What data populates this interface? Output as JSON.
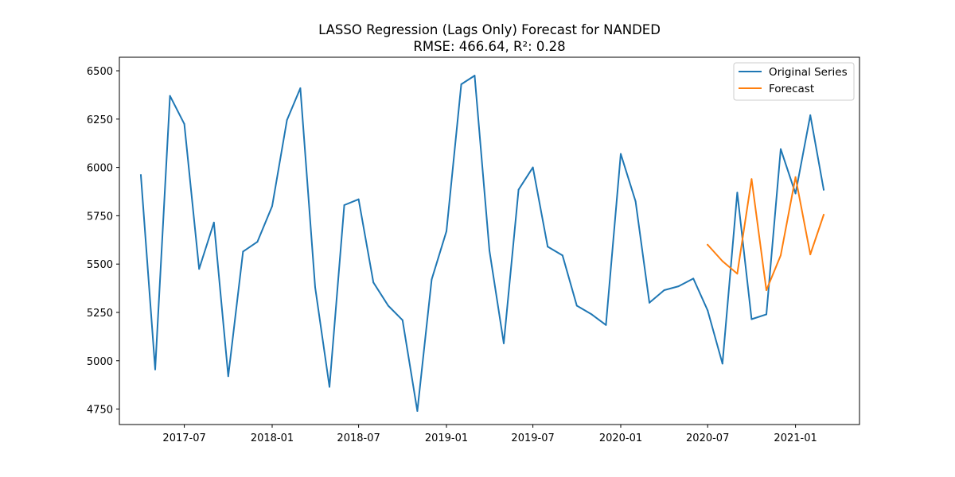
{
  "chart_data": {
    "type": "line",
    "title": "LASSO Regression (Lags Only) Forecast for NANDED",
    "subtitle": "RMSE: 466.64, R²: 0.28",
    "xlabel": "",
    "ylabel": "",
    "x_range": [
      "2017-02-15",
      "2021-05-15"
    ],
    "ylim": [
      4670,
      6570
    ],
    "x_ticks": [
      "2017-07-01",
      "2018-01-01",
      "2018-07-01",
      "2019-01-01",
      "2019-07-01",
      "2020-01-01",
      "2020-07-01",
      "2021-01-01"
    ],
    "x_tick_labels": [
      "2017-07",
      "2018-01",
      "2018-07",
      "2019-01",
      "2019-07",
      "2020-01",
      "2020-07",
      "2021-01"
    ],
    "y_ticks": [
      4750,
      5000,
      5250,
      5500,
      5750,
      6000,
      6250,
      6500
    ],
    "y_tick_labels": [
      "4750",
      "5000",
      "5250",
      "5500",
      "5750",
      "6000",
      "6250",
      "6500"
    ],
    "grid": false,
    "legend_position": "top-right",
    "series": [
      {
        "name": "Original Series",
        "color": "#1f77b4",
        "x": [
          "2017-04-01",
          "2017-05-01",
          "2017-06-01",
          "2017-07-01",
          "2017-08-01",
          "2017-09-01",
          "2017-10-01",
          "2017-11-01",
          "2017-12-01",
          "2018-01-01",
          "2018-02-01",
          "2018-03-01",
          "2018-04-01",
          "2018-05-01",
          "2018-06-01",
          "2018-07-01",
          "2018-08-01",
          "2018-09-01",
          "2018-10-01",
          "2018-11-01",
          "2018-12-01",
          "2019-01-01",
          "2019-02-01",
          "2019-03-01",
          "2019-04-01",
          "2019-05-01",
          "2019-06-01",
          "2019-07-01",
          "2019-08-01",
          "2019-09-01",
          "2019-10-01",
          "2019-11-01",
          "2019-12-01",
          "2020-01-01",
          "2020-02-01",
          "2020-03-01",
          "2020-04-01",
          "2020-05-01",
          "2020-06-01",
          "2020-07-01",
          "2020-08-01",
          "2020-09-01",
          "2020-10-01",
          "2020-11-01",
          "2020-12-01",
          "2021-01-01",
          "2021-02-01",
          "2021-03-01"
        ],
        "y": [
          5960,
          4955,
          6370,
          6225,
          5475,
          5715,
          4920,
          5565,
          5615,
          5800,
          6245,
          6410,
          5380,
          4865,
          5805,
          5835,
          5405,
          5285,
          5210,
          4740,
          5420,
          5670,
          6430,
          6475,
          5570,
          5090,
          5885,
          6000,
          5590,
          5545,
          5285,
          5240,
          5185,
          6070,
          5825,
          5300,
          5365,
          5385,
          5425,
          5260,
          4985,
          5870,
          5215,
          5240,
          6095,
          5865,
          6270,
          5885
        ]
      },
      {
        "name": "Forecast",
        "color": "#ff7f0e",
        "x": [
          "2020-07-01",
          "2020-08-01",
          "2020-09-01",
          "2020-10-01",
          "2020-11-01",
          "2020-12-01",
          "2021-01-01",
          "2021-02-01",
          "2021-03-01"
        ],
        "y": [
          5600,
          5515,
          5450,
          5940,
          5365,
          5545,
          5950,
          5550,
          5755
        ]
      }
    ]
  }
}
